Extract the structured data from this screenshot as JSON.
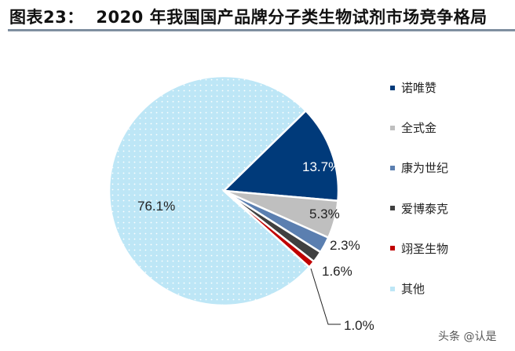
{
  "title": "图表23：  2020 年我国国产品牌分子类生物试剂市场竞争格局",
  "watermark": "头条 @认是",
  "chart_data": {
    "type": "pie",
    "title": "2020 年我国国产品牌分子类生物试剂市场竞争格局",
    "legend_position": "right",
    "slices": [
      {
        "name": "诺唯赞",
        "value": 13.7,
        "label": "13.7%",
        "color": "#003a7a"
      },
      {
        "name": "全式金",
        "value": 5.3,
        "label": "5.3%",
        "color": "#bfbfbf"
      },
      {
        "name": "康为世纪",
        "value": 2.3,
        "label": "2.3%",
        "color": "#5b7fb0"
      },
      {
        "name": "爱博泰克",
        "value": 1.6,
        "label": "1.6%",
        "color": "#404040"
      },
      {
        "name": "翊圣生物",
        "value": 1.0,
        "label": "1.0%",
        "color": "#c00000"
      },
      {
        "name": "其他",
        "value": 76.1,
        "label": "76.1%",
        "color": "#bde6f6"
      }
    ]
  }
}
